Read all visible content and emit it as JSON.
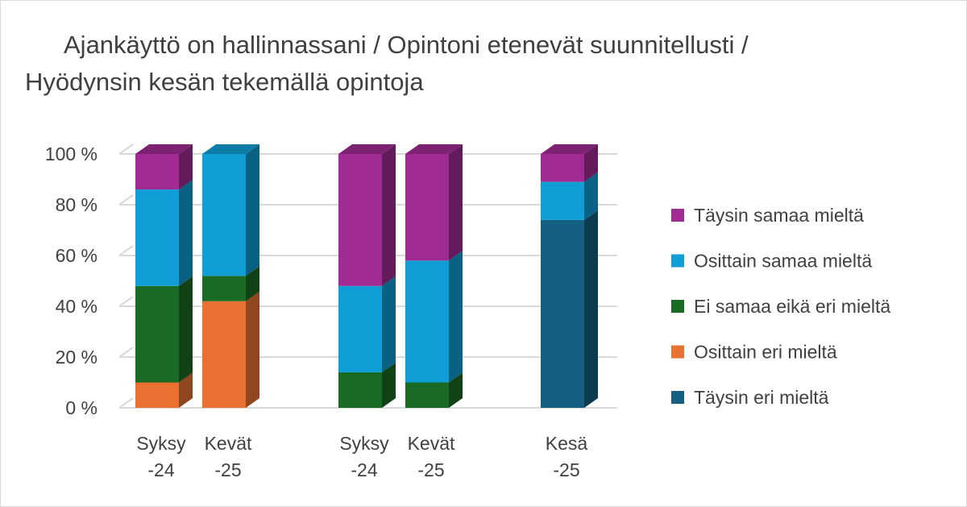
{
  "chart_data": {
    "type": "bar",
    "stacked": true,
    "three_d": true,
    "title": "Ajankäyttö on hallinnassani / Opintoni etenevät suunnitellusti / Hyödynsin kesän tekemällä opintoja",
    "categories": [
      [
        "Syksy",
        "-24"
      ],
      [
        "Kevät",
        "-25"
      ],
      [
        "Syksy",
        "-24"
      ],
      [
        "Kevät",
        "-25"
      ],
      [
        "Kesä",
        "-25"
      ]
    ],
    "yticks": [
      "0 %",
      "20 %",
      "40 %",
      "60 %",
      "80 %",
      "100 %"
    ],
    "ylim": [
      0,
      100
    ],
    "grid": true,
    "legend_position": "right",
    "series": [
      {
        "name": "Täysin eri mieltä",
        "color": "#156082",
        "values": [
          0,
          0,
          0,
          0,
          74
        ]
      },
      {
        "name": "Osittain eri mieltä",
        "color": "#E97132",
        "values": [
          10,
          42,
          0,
          0,
          0
        ]
      },
      {
        "name": "Ei samaa eikä eri mieltä",
        "color": "#196B24",
        "values": [
          38,
          10,
          14,
          10,
          0
        ]
      },
      {
        "name": "Osittain samaa mieltä",
        "color": "#0F9ED5",
        "values": [
          38,
          48,
          34,
          48,
          15
        ]
      },
      {
        "name": "Täysin samaa mieltä",
        "color": "#A02B93",
        "values": [
          14,
          0,
          52,
          42,
          11
        ]
      }
    ]
  }
}
